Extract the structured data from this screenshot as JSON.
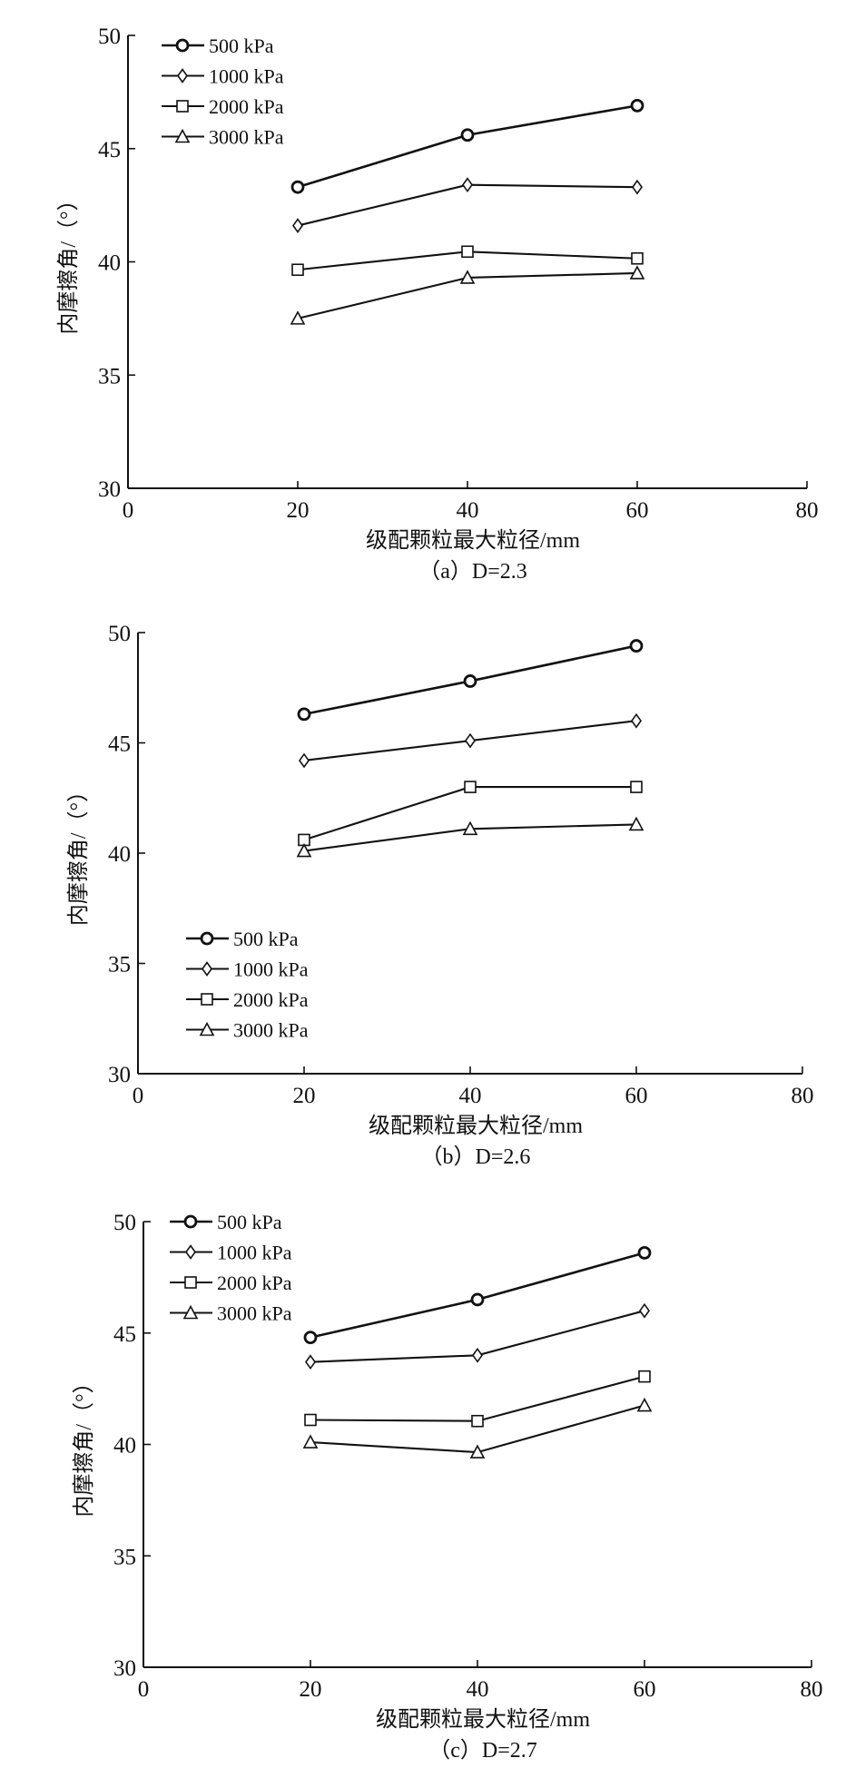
{
  "chart_data": [
    {
      "type": "line",
      "panel": "a",
      "caption": "（a）D=2.3",
      "xlabel": "级配颗粒最大粒径/mm",
      "ylabel": "内摩擦角/（°）",
      "xlim": [
        0,
        80
      ],
      "ylim": [
        30,
        50
      ],
      "xticks": [
        "0",
        "20",
        "40",
        "60",
        "80"
      ],
      "yticks": [
        "30",
        "35",
        "40",
        "45",
        "50"
      ],
      "legend_position": "top-left",
      "x": [
        20,
        40,
        60
      ],
      "series": [
        {
          "name": "500 kPa",
          "marker": "circle",
          "values": [
            43.3,
            45.6,
            46.9
          ]
        },
        {
          "name": "1000 kPa",
          "marker": "diamond",
          "values": [
            41.6,
            43.4,
            43.3
          ]
        },
        {
          "name": "2000 kPa",
          "marker": "square",
          "values": [
            39.65,
            40.45,
            40.15
          ]
        },
        {
          "name": "3000 kPa",
          "marker": "triangle",
          "values": [
            37.5,
            39.3,
            39.5
          ]
        }
      ]
    },
    {
      "type": "line",
      "panel": "b",
      "caption": "（b）D=2.6",
      "xlabel": "级配颗粒最大粒径/mm",
      "ylabel": "内摩擦角/（°）",
      "xlim": [
        0,
        80
      ],
      "ylim": [
        30,
        50
      ],
      "xticks": [
        "0",
        "20",
        "40",
        "60",
        "80"
      ],
      "yticks": [
        "30",
        "35",
        "40",
        "45",
        "50"
      ],
      "legend_position": "bottom-left",
      "x": [
        20,
        40,
        60
      ],
      "series": [
        {
          "name": "500 kPa",
          "marker": "circle",
          "values": [
            46.3,
            47.8,
            49.4
          ]
        },
        {
          "name": "1000 kPa",
          "marker": "diamond",
          "values": [
            44.2,
            45.1,
            46.0
          ]
        },
        {
          "name": "2000 kPa",
          "marker": "square",
          "values": [
            40.6,
            43.0,
            43.0
          ]
        },
        {
          "name": "3000 kPa",
          "marker": "triangle",
          "values": [
            40.1,
            41.1,
            41.3
          ]
        }
      ]
    },
    {
      "type": "line",
      "panel": "c",
      "caption": "（c）D=2.7",
      "xlabel": "级配颗粒最大粒径/mm",
      "ylabel": "内摩擦角/（°）",
      "xlim": [
        0,
        80
      ],
      "ylim": [
        30,
        50
      ],
      "xticks": [
        "0",
        "20",
        "40",
        "60",
        "80"
      ],
      "yticks": [
        "30",
        "35",
        "40",
        "45",
        "50"
      ],
      "legend_position": "top-left",
      "x": [
        20,
        40,
        60
      ],
      "series": [
        {
          "name": "500 kPa",
          "marker": "circle",
          "values": [
            44.8,
            46.5,
            48.6
          ]
        },
        {
          "name": "1000 kPa",
          "marker": "diamond",
          "values": [
            43.7,
            44.0,
            46.0
          ]
        },
        {
          "name": "2000 kPa",
          "marker": "square",
          "values": [
            41.1,
            41.05,
            43.05
          ]
        },
        {
          "name": "3000 kPa",
          "marker": "triangle",
          "values": [
            40.1,
            39.65,
            41.75
          ]
        }
      ]
    }
  ]
}
